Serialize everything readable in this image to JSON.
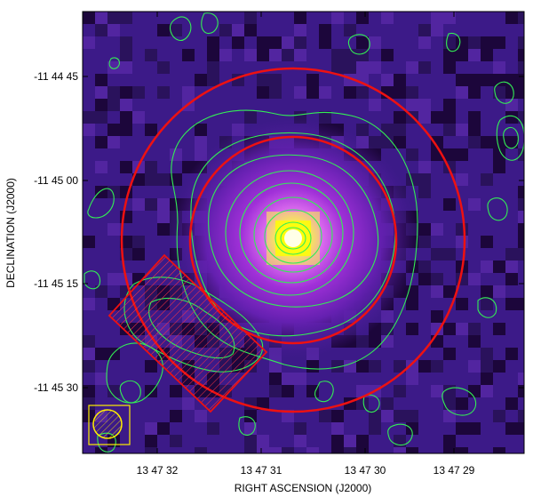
{
  "figure": {
    "xlabel": "RIGHT ASCENSION  (J2000)",
    "ylabel": "DECLINATION  (J2000)",
    "x_ticks": [
      "13 47 32",
      "13 47 31",
      "13 47 30",
      "13 47 29"
    ],
    "y_ticks": [
      "-11 44 45",
      "-11 45 00",
      "-11 45 15",
      "-11 45 30"
    ]
  },
  "colors": {
    "background_low": "#1a0033",
    "background_mid": "#3a1a8a",
    "halo": "#c040e0",
    "core": "#ffff00",
    "contour": "#33ee55",
    "regions": "#ee1111",
    "beam_marker": "#ffee00"
  },
  "overlays": {
    "regions": [
      "outer-circle",
      "inner-circle",
      "hatched-box"
    ],
    "beam_marker": "beam-ellipse"
  }
}
